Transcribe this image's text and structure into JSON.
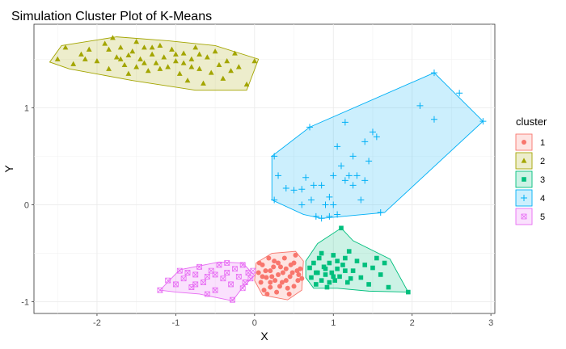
{
  "chart_data": {
    "type": "scatter",
    "title": "Simulation Cluster Plot of K-Means",
    "xlabel": "X",
    "ylabel": "Y",
    "xlim": [
      -2.8,
      3.05
    ],
    "ylim": [
      -1.12,
      1.86
    ],
    "xticks": [
      -2,
      -1,
      0,
      1,
      2,
      3
    ],
    "yticks": [
      -1,
      0,
      1
    ],
    "grid": true,
    "legend": {
      "title": "cluster",
      "position": "right"
    },
    "series": [
      {
        "name": "1",
        "color": "#F8766D",
        "shape": "circle",
        "hull": [
          [
            0.02,
            -0.6
          ],
          [
            0.22,
            -0.5
          ],
          [
            0.52,
            -0.48
          ],
          [
            0.62,
            -0.58
          ],
          [
            0.6,
            -0.88
          ],
          [
            0.42,
            -0.98
          ],
          [
            0.1,
            -0.93
          ],
          [
            0.0,
            -0.78
          ]
        ],
        "points": [
          [
            0.05,
            -0.7
          ],
          [
            0.1,
            -0.62
          ],
          [
            0.15,
            -0.75
          ],
          [
            0.2,
            -0.85
          ],
          [
            0.25,
            -0.58
          ],
          [
            0.3,
            -0.72
          ],
          [
            0.35,
            -0.8
          ],
          [
            0.4,
            -0.66
          ],
          [
            0.45,
            -0.74
          ],
          [
            0.5,
            -0.6
          ],
          [
            0.55,
            -0.78
          ],
          [
            0.12,
            -0.88
          ],
          [
            0.2,
            -0.68
          ],
          [
            0.28,
            -0.9
          ],
          [
            0.38,
            -0.55
          ],
          [
            0.42,
            -0.86
          ],
          [
            0.48,
            -0.7
          ],
          [
            0.52,
            -0.52
          ],
          [
            0.58,
            -0.66
          ],
          [
            0.08,
            -0.8
          ],
          [
            0.18,
            -0.55
          ],
          [
            0.33,
            -0.64
          ],
          [
            0.26,
            -0.78
          ],
          [
            0.44,
            -0.92
          ],
          [
            0.36,
            -0.7
          ],
          [
            0.3,
            -0.6
          ],
          [
            0.22,
            -0.74
          ],
          [
            0.14,
            -0.68
          ],
          [
            0.4,
            -0.78
          ],
          [
            0.5,
            -0.84
          ],
          [
            0.56,
            -0.72
          ],
          [
            0.06,
            -0.6
          ],
          [
            0.16,
            -0.92
          ],
          [
            0.24,
            -0.64
          ],
          [
            0.32,
            -0.84
          ],
          [
            0.46,
            -0.62
          ],
          [
            0.54,
            -0.68
          ],
          [
            0.6,
            -0.76
          ],
          [
            0.1,
            -0.74
          ],
          [
            0.2,
            -0.8
          ]
        ]
      },
      {
        "name": "2",
        "color": "#A3A500",
        "shape": "triangle",
        "hull": [
          [
            -2.6,
            1.47
          ],
          [
            -2.45,
            1.64
          ],
          [
            -1.75,
            1.73
          ],
          [
            -1.1,
            1.69
          ],
          [
            -0.5,
            1.64
          ],
          [
            0.05,
            1.5
          ],
          [
            -0.1,
            1.18
          ],
          [
            -0.75,
            1.18
          ],
          [
            -1.55,
            1.28
          ],
          [
            -2.35,
            1.4
          ]
        ],
        "points": [
          [
            -2.5,
            1.5
          ],
          [
            -2.4,
            1.62
          ],
          [
            -2.3,
            1.45
          ],
          [
            -2.2,
            1.55
          ],
          [
            -2.1,
            1.6
          ],
          [
            -2.0,
            1.48
          ],
          [
            -1.9,
            1.66
          ],
          [
            -1.85,
            1.4
          ],
          [
            -1.8,
            1.72
          ],
          [
            -1.75,
            1.52
          ],
          [
            -1.7,
            1.62
          ],
          [
            -1.65,
            1.44
          ],
          [
            -1.6,
            1.35
          ],
          [
            -1.55,
            1.58
          ],
          [
            -1.5,
            1.68
          ],
          [
            -1.45,
            1.5
          ],
          [
            -1.4,
            1.62
          ],
          [
            -1.35,
            1.38
          ],
          [
            -1.3,
            1.55
          ],
          [
            -1.25,
            1.46
          ],
          [
            -1.2,
            1.64
          ],
          [
            -1.15,
            1.52
          ],
          [
            -1.1,
            1.42
          ],
          [
            -1.05,
            1.6
          ],
          [
            -1.0,
            1.48
          ],
          [
            -0.95,
            1.35
          ],
          [
            -0.9,
            1.56
          ],
          [
            -0.85,
            1.28
          ],
          [
            -0.8,
            1.5
          ],
          [
            -0.75,
            1.62
          ],
          [
            -0.7,
            1.4
          ],
          [
            -0.65,
            1.25
          ],
          [
            -0.6,
            1.52
          ],
          [
            -0.55,
            1.36
          ],
          [
            -0.5,
            1.58
          ],
          [
            -0.45,
            1.44
          ],
          [
            -0.4,
            1.3
          ],
          [
            -0.35,
            1.48
          ],
          [
            -0.3,
            1.38
          ],
          [
            -0.25,
            1.56
          ],
          [
            -0.2,
            1.42
          ],
          [
            -0.1,
            1.24
          ],
          [
            0.0,
            1.48
          ],
          [
            -1.6,
            1.54
          ],
          [
            -1.4,
            1.46
          ],
          [
            -1.2,
            1.4
          ],
          [
            -1.0,
            1.55
          ],
          [
            -0.8,
            1.42
          ],
          [
            -1.7,
            1.5
          ],
          [
            -1.5,
            1.42
          ],
          [
            -1.3,
            1.62
          ],
          [
            -0.9,
            1.46
          ],
          [
            -0.7,
            1.55
          ],
          [
            -1.85,
            1.6
          ],
          [
            -2.15,
            1.5
          ]
        ]
      },
      {
        "name": "3",
        "color": "#00BF7D",
        "shape": "square",
        "hull": [
          [
            0.65,
            -0.58
          ],
          [
            0.8,
            -0.4
          ],
          [
            1.1,
            -0.24
          ],
          [
            1.25,
            -0.37
          ],
          [
            1.72,
            -0.56
          ],
          [
            1.95,
            -0.9
          ],
          [
            1.45,
            -0.89
          ],
          [
            1.05,
            -0.86
          ],
          [
            0.75,
            -0.86
          ],
          [
            0.65,
            -0.75
          ]
        ],
        "points": [
          [
            0.7,
            -0.65
          ],
          [
            0.72,
            -0.75
          ],
          [
            0.75,
            -0.6
          ],
          [
            0.78,
            -0.82
          ],
          [
            0.8,
            -0.7
          ],
          [
            0.82,
            -0.55
          ],
          [
            0.85,
            -0.78
          ],
          [
            0.88,
            -0.64
          ],
          [
            0.9,
            -0.72
          ],
          [
            0.92,
            -0.85
          ],
          [
            0.95,
            -0.6
          ],
          [
            0.98,
            -0.7
          ],
          [
            1.0,
            -0.52
          ],
          [
            1.02,
            -0.78
          ],
          [
            1.05,
            -0.66
          ],
          [
            1.08,
            -0.74
          ],
          [
            1.1,
            -0.24
          ],
          [
            1.12,
            -0.62
          ],
          [
            1.15,
            -0.55
          ],
          [
            1.18,
            -0.8
          ],
          [
            1.2,
            -0.48
          ],
          [
            1.25,
            -0.68
          ],
          [
            1.3,
            -0.58
          ],
          [
            1.35,
            -0.75
          ],
          [
            1.4,
            -0.62
          ],
          [
            1.45,
            -0.82
          ],
          [
            1.5,
            -0.65
          ],
          [
            1.55,
            -0.55
          ],
          [
            1.6,
            -0.72
          ],
          [
            1.65,
            -0.6
          ],
          [
            1.7,
            -0.85
          ],
          [
            1.95,
            -0.9
          ],
          [
            0.85,
            -0.5
          ],
          [
            0.95,
            -0.8
          ],
          [
            1.05,
            -0.58
          ],
          [
            0.9,
            -0.66
          ],
          [
            1.0,
            -0.74
          ],
          [
            1.15,
            -0.68
          ],
          [
            0.78,
            -0.7
          ],
          [
            1.22,
            -0.76
          ]
        ]
      },
      {
        "name": "4",
        "color": "#00B0F6",
        "shape": "cross",
        "hull": [
          [
            0.22,
            0.5
          ],
          [
            0.7,
            0.8
          ],
          [
            2.28,
            1.36
          ],
          [
            2.9,
            0.86
          ],
          [
            1.65,
            -0.08
          ],
          [
            0.85,
            -0.14
          ],
          [
            0.62,
            -0.1
          ],
          [
            0.22,
            0.05
          ]
        ],
        "points": [
          [
            0.25,
            0.5
          ],
          [
            0.25,
            0.05
          ],
          [
            0.3,
            0.3
          ],
          [
            0.4,
            0.17
          ],
          [
            0.5,
            0.15
          ],
          [
            0.6,
            0.16
          ],
          [
            0.65,
            0.28
          ],
          [
            0.7,
            0.8
          ],
          [
            0.72,
            0.05
          ],
          [
            0.78,
            -0.12
          ],
          [
            0.85,
            -0.14
          ],
          [
            0.9,
            0.0
          ],
          [
            0.95,
            0.08
          ],
          [
            1.0,
            0.3
          ],
          [
            1.05,
            0.6
          ],
          [
            1.1,
            0.4
          ],
          [
            1.15,
            0.85
          ],
          [
            1.2,
            0.3
          ],
          [
            1.25,
            0.2
          ],
          [
            1.3,
            0.3
          ],
          [
            1.35,
            0.05
          ],
          [
            1.4,
            0.65
          ],
          [
            1.45,
            0.45
          ],
          [
            1.5,
            0.75
          ],
          [
            1.55,
            0.7
          ],
          [
            1.6,
            -0.08
          ],
          [
            1.05,
            -0.1
          ],
          [
            0.95,
            -0.12
          ],
          [
            0.85,
            0.2
          ],
          [
            1.0,
            0.0
          ],
          [
            1.15,
            0.25
          ],
          [
            2.1,
            1.02
          ],
          [
            2.28,
            0.88
          ],
          [
            2.28,
            1.36
          ],
          [
            2.6,
            1.15
          ],
          [
            2.9,
            0.86
          ],
          [
            0.75,
            0.2
          ],
          [
            1.25,
            0.5
          ],
          [
            1.4,
            0.25
          ],
          [
            0.6,
            0.0
          ]
        ]
      },
      {
        "name": "5",
        "color": "#E76BF3",
        "shape": "boxcross",
        "hull": [
          [
            -1.2,
            -0.88
          ],
          [
            -0.95,
            -0.67
          ],
          [
            -0.45,
            -0.59
          ],
          [
            -0.15,
            -0.6
          ],
          [
            0.0,
            -0.73
          ],
          [
            -0.15,
            -0.85
          ],
          [
            -0.28,
            -0.99
          ],
          [
            -0.7,
            -0.92
          ],
          [
            -1.0,
            -0.9
          ]
        ],
        "points": [
          [
            -1.2,
            -0.88
          ],
          [
            -1.1,
            -0.78
          ],
          [
            -1.0,
            -0.82
          ],
          [
            -0.95,
            -0.68
          ],
          [
            -0.9,
            -0.76
          ],
          [
            -0.85,
            -0.7
          ],
          [
            -0.8,
            -0.85
          ],
          [
            -0.75,
            -0.72
          ],
          [
            -0.7,
            -0.64
          ],
          [
            -0.65,
            -0.8
          ],
          [
            -0.6,
            -0.74
          ],
          [
            -0.55,
            -0.68
          ],
          [
            -0.5,
            -0.88
          ],
          [
            -0.45,
            -0.62
          ],
          [
            -0.4,
            -0.76
          ],
          [
            -0.35,
            -0.7
          ],
          [
            -0.3,
            -0.82
          ],
          [
            -0.28,
            -0.98
          ],
          [
            -0.25,
            -0.66
          ],
          [
            -0.2,
            -0.74
          ],
          [
            -0.15,
            -0.62
          ],
          [
            -0.12,
            -0.8
          ],
          [
            -0.08,
            -0.7
          ],
          [
            -0.05,
            -0.76
          ],
          [
            -0.02,
            -0.68
          ],
          [
            -0.6,
            -0.92
          ],
          [
            -0.35,
            -0.6
          ],
          [
            -0.75,
            -0.82
          ],
          [
            -0.5,
            -0.72
          ],
          [
            -0.15,
            -0.86
          ]
        ]
      }
    ]
  }
}
